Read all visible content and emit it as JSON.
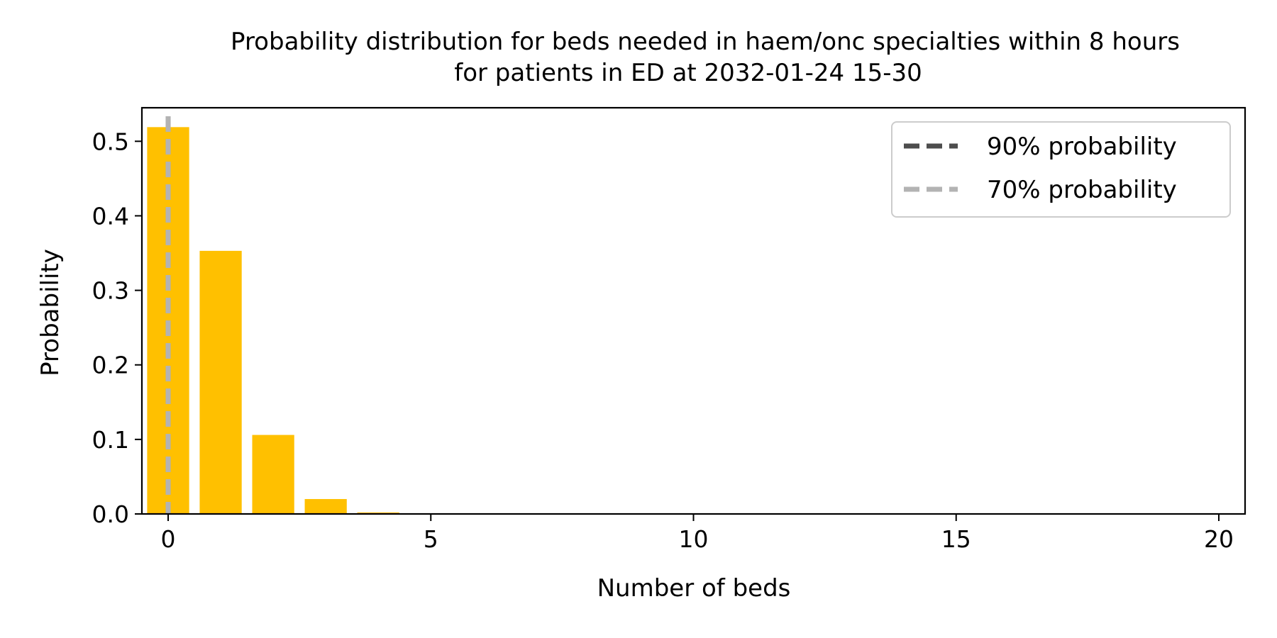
{
  "chart_data": {
    "type": "bar",
    "title_line1": "Probability distribution for beds needed in haem/onc specialties within 8 hours",
    "title_line2": "for patients in ED at 2032-01-24 15-30",
    "xlabel": "Number of beds",
    "ylabel": "Probability",
    "xlim": [
      -0.5,
      20.5
    ],
    "ylim": [
      0.0,
      0.545
    ],
    "x_ticks": [
      0,
      5,
      10,
      15,
      20
    ],
    "y_ticks": [
      0.0,
      0.1,
      0.2,
      0.3,
      0.4,
      0.5
    ],
    "y_tick_labels": [
      "0.0",
      "0.1",
      "0.2",
      "0.3",
      "0.4",
      "0.5"
    ],
    "bar_color": "#ffc000",
    "categories": [
      0,
      1,
      2,
      3,
      4,
      5,
      6,
      7,
      8,
      9,
      10,
      11,
      12,
      13,
      14,
      15,
      16,
      17,
      18,
      19,
      20
    ],
    "values": [
      0.519,
      0.353,
      0.106,
      0.02,
      0.002,
      0.0002,
      0,
      0,
      0,
      0,
      0,
      0,
      0,
      0,
      0,
      0,
      0,
      0,
      0,
      0,
      0
    ],
    "reference_lines": [
      {
        "name": "90% probability",
        "x": 0,
        "color": "#4d4d4d"
      },
      {
        "name": "70% probability",
        "x": 0,
        "color": "#b3b3b3"
      }
    ],
    "legend_position": "top-right",
    "grid": false
  }
}
